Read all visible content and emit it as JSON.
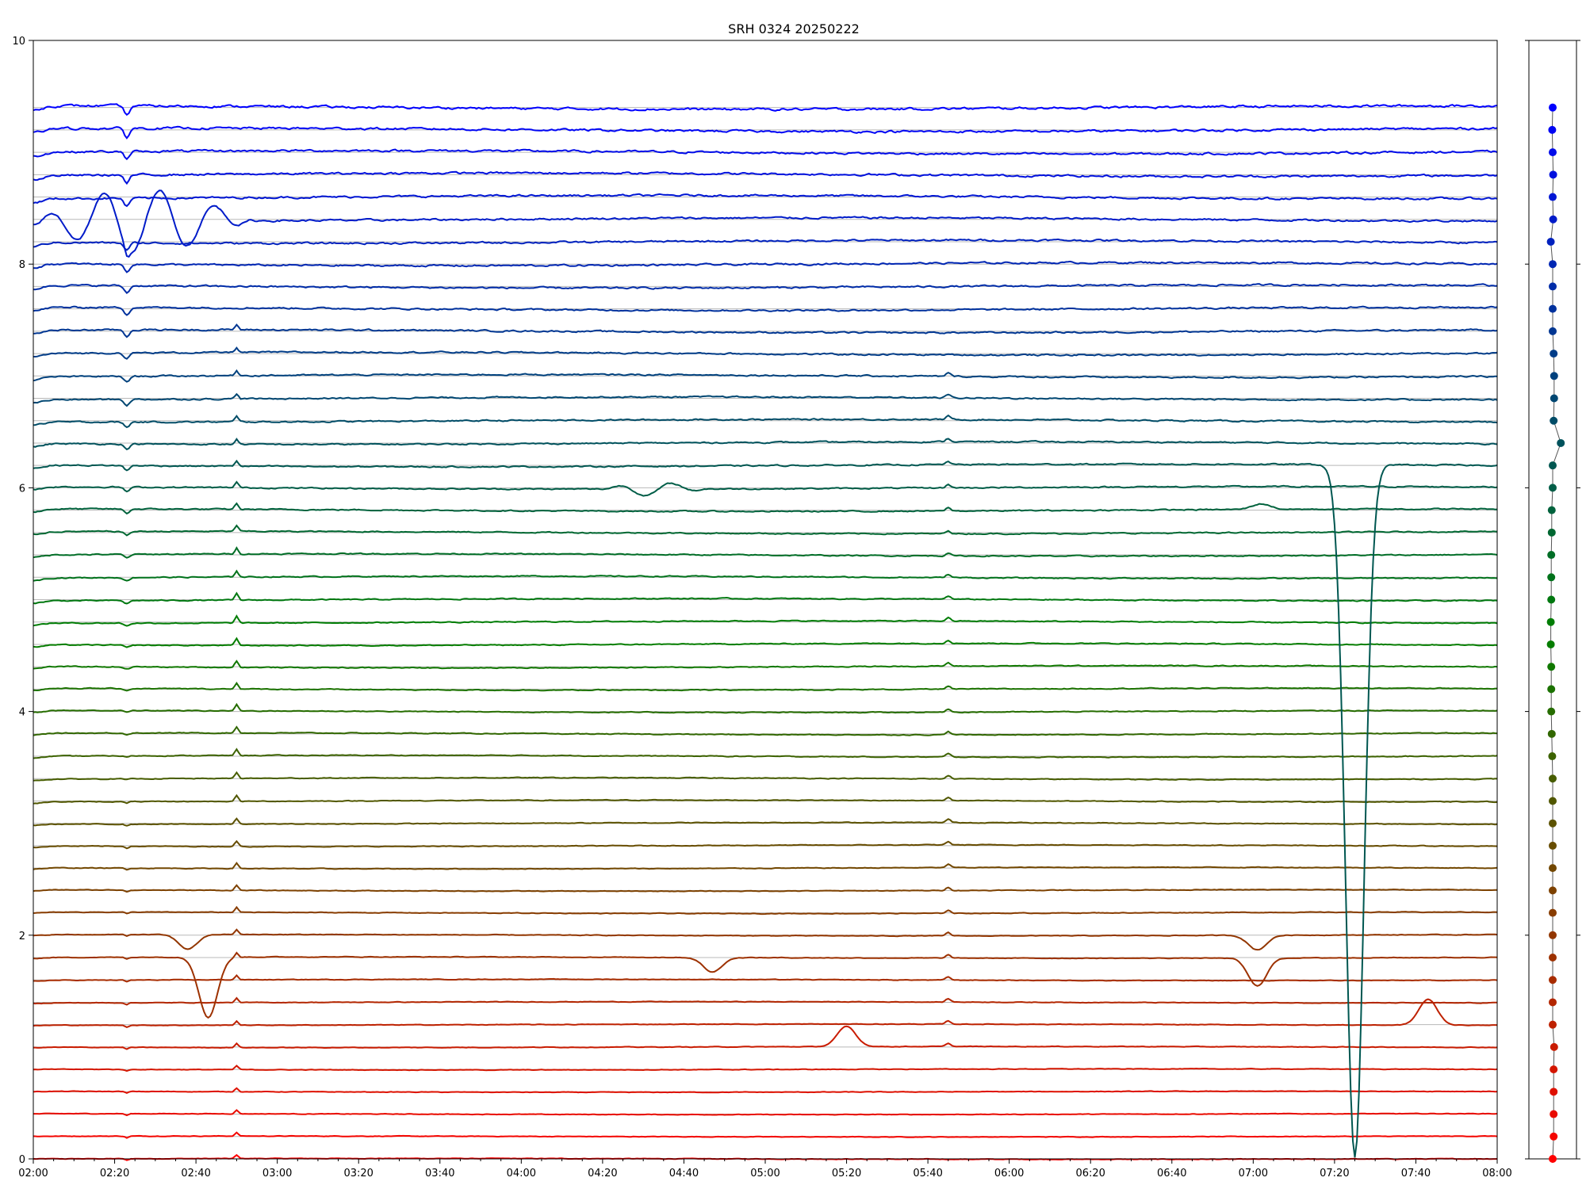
{
  "chart_data": {
    "type": "line",
    "title": "SRH 0324 20250222",
    "x_range": [
      "02:00",
      "08:00"
    ],
    "x_ticks": [
      "02:00",
      "02:20",
      "02:40",
      "03:00",
      "03:20",
      "03:40",
      "04:00",
      "04:20",
      "04:40",
      "05:00",
      "05:20",
      "05:40",
      "06:00",
      "06:20",
      "06:40",
      "07:00",
      "07:20",
      "07:40",
      "08:00"
    ],
    "ylim": [
      0,
      10
    ],
    "y_ticks": [
      0,
      2,
      4,
      6,
      8,
      10
    ],
    "grid": "horizontal lines at each channel baseline",
    "channels": 48,
    "baselines": [
      0.0,
      0.2,
      0.4,
      0.6,
      0.8,
      1.0,
      1.2,
      1.4,
      1.6,
      1.8,
      2.0,
      2.2,
      2.4,
      2.6,
      2.8,
      3.0,
      3.2,
      3.4,
      3.6,
      3.8,
      4.0,
      4.2,
      4.4,
      4.6,
      4.8,
      5.0,
      5.2,
      5.4,
      5.6,
      5.8,
      6.0,
      6.2,
      6.4,
      6.6,
      6.8,
      7.0,
      7.2,
      7.4,
      7.6,
      7.8,
      8.0,
      8.2,
      8.4,
      8.6,
      8.8,
      9.0,
      9.2,
      9.4
    ],
    "color_low": "#ff0000",
    "color_mid": "#008000",
    "color_high": "#0000ff",
    "common_features": [
      {
        "time": "02:23",
        "description": "sharp negative dip on upper channels"
      },
      {
        "time": "02:50",
        "description": "small positive spike on middle and lower channels"
      },
      {
        "time": "05:45",
        "description": "small positive bump"
      }
    ],
    "channel_events": [
      {
        "channel": 42,
        "time_range": [
          "02:00",
          "02:53"
        ],
        "description": "large oscillations amplitude ~0.35"
      },
      {
        "channel": 10,
        "time": "02:38",
        "description": "dip to ~1.87"
      },
      {
        "channel": 9,
        "time": "02:43",
        "description": "dip to ~1.26"
      },
      {
        "channel": 9,
        "time": "04:47",
        "description": "dip to ~1.67"
      },
      {
        "channel": 9,
        "time": "07:01",
        "description": "dip to ~1.55"
      },
      {
        "channel": 10,
        "time": "07:01",
        "description": "dip to ~1.87"
      },
      {
        "channel": 6,
        "time": "07:43",
        "description": "bump to ~1.43"
      },
      {
        "channel": 5,
        "time": "05:20",
        "description": "bump to ~1.18"
      },
      {
        "channel": 30,
        "time_range": [
          "04:20",
          "04:45"
        ],
        "description": "wave-like bumps"
      },
      {
        "channel": 31,
        "time": "07:25",
        "description": "bump then dip"
      },
      {
        "channel": 29,
        "time": "07:02",
        "description": "double bump to ~5.85"
      }
    ],
    "side_panel": {
      "description": "per-channel offset markers",
      "y_values": [
        0.0,
        0.2,
        0.4,
        0.6,
        0.8,
        1.0,
        1.2,
        1.4,
        1.6,
        1.8,
        2.0,
        2.2,
        2.4,
        2.6,
        2.8,
        3.0,
        3.2,
        3.4,
        3.6,
        3.8,
        4.0,
        4.2,
        4.4,
        4.6,
        4.8,
        5.0,
        5.2,
        5.4,
        5.6,
        5.8,
        6.0,
        6.2,
        6.4,
        6.6,
        6.8,
        7.0,
        7.2,
        7.4,
        7.6,
        7.8,
        8.0,
        8.2,
        8.4,
        8.6,
        8.8,
        9.0,
        9.2,
        9.4
      ],
      "x_offsets": [
        0.0,
        0.1,
        0.1,
        0.1,
        0.1,
        0.15,
        0.0,
        0.0,
        0.0,
        0.0,
        0.0,
        0.0,
        0.0,
        0.0,
        0.0,
        0.0,
        0.0,
        0.0,
        -0.05,
        -0.1,
        -0.15,
        -0.15,
        -0.15,
        -0.2,
        -0.2,
        -0.15,
        -0.15,
        -0.15,
        -0.1,
        -0.1,
        0.0,
        0.0,
        0.85,
        0.1,
        0.15,
        0.15,
        0.1,
        0.0,
        0.0,
        0.0,
        0.0,
        -0.2,
        0.05,
        0.0,
        0.05,
        0.0,
        -0.05,
        0.0
      ]
    }
  }
}
